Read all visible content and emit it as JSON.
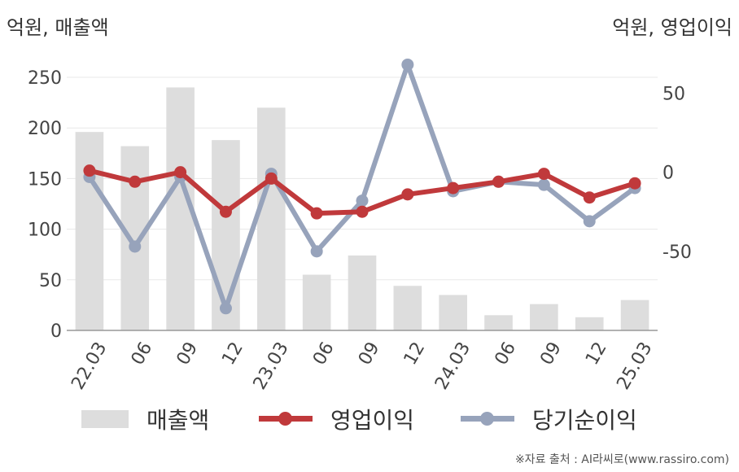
{
  "unit_left": "억원, 매출액",
  "unit_right": "억원, 영업이익",
  "source": "※자료 출처 : AI라씨로(www.rassiro.com)",
  "colors": {
    "revenue": "#dddddd",
    "operating_profit": "#c0393b",
    "net_income": "#97a3bb"
  },
  "legend": [
    {
      "label": "매출액"
    },
    {
      "label": "영업이익"
    },
    {
      "label": "당기순이익"
    }
  ],
  "chart_data": {
    "type": "bar",
    "categories": [
      "22.03",
      "06",
      "09",
      "12",
      "23.03",
      "06",
      "09",
      "12",
      "24.03",
      "06",
      "09",
      "12",
      "25.03"
    ],
    "ylim_left": [
      0,
      250
    ],
    "yticks_left": [
      0,
      50,
      100,
      150,
      200,
      250
    ],
    "ylim_right": [
      -100,
      60
    ],
    "yticks_right": [
      -50,
      0,
      50
    ],
    "series": [
      {
        "name": "매출액",
        "type": "bar",
        "axis": "left",
        "values": [
          196,
          182,
          240,
          188,
          220,
          55,
          74,
          44,
          35,
          15,
          26,
          13,
          30
        ]
      },
      {
        "name": "영업이익",
        "type": "line",
        "axis": "right",
        "values": [
          1,
          -6,
          0,
          -25,
          -4,
          -26,
          -25,
          -14,
          -10,
          -6,
          -1,
          -16,
          -7
        ]
      },
      {
        "name": "당기순이익",
        "type": "line",
        "axis": "right",
        "values": [
          -3,
          -47,
          -3,
          -86,
          -1,
          -50,
          -18,
          68,
          -12,
          -6,
          -8,
          -31,
          -10
        ]
      }
    ]
  }
}
